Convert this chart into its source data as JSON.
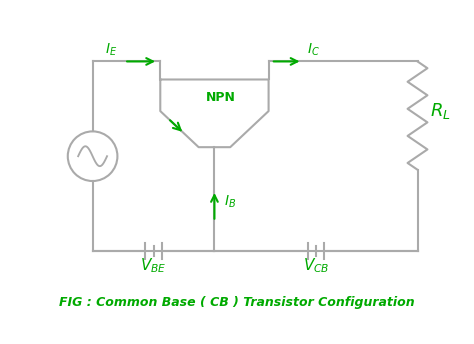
{
  "color_green": "#00aa00",
  "color_wire": "#aaaaaa",
  "bg_color": "#ffffff",
  "line_width": 1.5,
  "caption": "FIG : Common Base ( CB ) Transistor Configuration",
  "caption_fontsize": 9
}
